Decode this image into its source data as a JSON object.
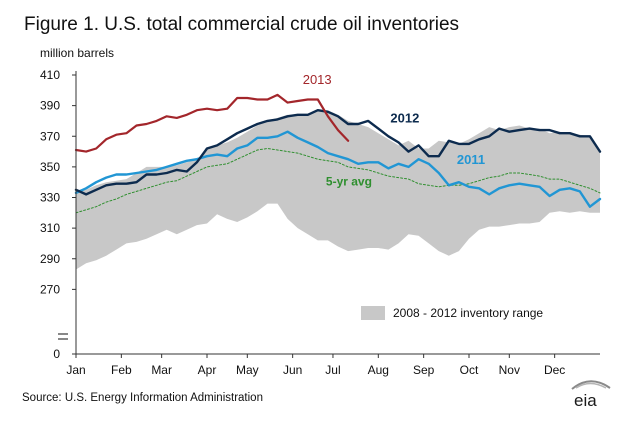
{
  "figure": {
    "title": "Figure 1.  U.S. total commercial crude oil inventories",
    "units": "million barrels",
    "source": "Source:  U.S. Energy Information Administration",
    "logo_text": "eia"
  },
  "chart_data": {
    "type": "line",
    "title": "Figure 1.  U.S. total commercial crude oil inventories",
    "ylabel": "million barrels",
    "xlabel": "",
    "ylim": [
      0,
      410
    ],
    "axis_break": [
      0,
      250
    ],
    "yticks": [
      0,
      270,
      290,
      310,
      330,
      350,
      370,
      390,
      410
    ],
    "ytick_labels": [
      "0",
      "270",
      "290",
      "310",
      "330",
      "350",
      "370",
      "390",
      "410"
    ],
    "xlim": [
      1,
      53
    ],
    "months": [
      {
        "label": "Jan",
        "week": 1
      },
      {
        "label": "Feb",
        "week": 5.5
      },
      {
        "label": "Mar",
        "week": 9.5
      },
      {
        "label": "Apr",
        "week": 14
      },
      {
        "label": "May",
        "week": 18
      },
      {
        "label": "Jun",
        "week": 22.5
      },
      {
        "label": "Jul",
        "week": 26.5
      },
      {
        "label": "Aug",
        "week": 31
      },
      {
        "label": "Sep",
        "week": 35.5
      },
      {
        "label": "Oct",
        "week": 40
      },
      {
        "label": "Nov",
        "week": 44
      },
      {
        "label": "Dec",
        "week": 48.5
      }
    ],
    "grid": false,
    "range_band": {
      "name": "2008 - 2012 inventory range",
      "color": "#c8c8c8",
      "weeks": [
        1,
        2,
        3,
        4,
        5,
        6,
        7,
        8,
        9,
        10,
        11,
        12,
        13,
        14,
        15,
        16,
        17,
        18,
        19,
        20,
        21,
        22,
        23,
        24,
        25,
        26,
        27,
        28,
        29,
        30,
        31,
        32,
        33,
        34,
        35,
        36,
        37,
        38,
        39,
        40,
        41,
        42,
        43,
        44,
        45,
        46,
        47,
        48,
        49,
        50,
        51,
        52,
        53
      ],
      "upper": [
        335,
        335,
        338,
        340,
        341,
        342,
        346,
        350,
        350,
        350,
        351,
        353,
        355,
        361,
        364,
        366,
        369,
        373,
        377,
        380,
        382,
        384,
        384,
        384,
        387,
        387,
        384,
        380,
        378,
        376,
        372,
        368,
        364,
        367,
        362,
        362,
        367,
        366,
        365,
        368,
        372,
        376,
        374,
        376,
        377,
        375,
        375,
        372,
        373,
        372,
        371,
        370,
        361
      ],
      "lower": [
        283,
        287,
        289,
        292,
        296,
        300,
        301,
        303,
        306,
        309,
        306,
        309,
        312,
        313,
        319,
        316,
        314,
        317,
        321,
        326,
        326,
        316,
        310,
        306,
        302,
        302,
        298,
        295,
        296,
        297,
        297,
        296,
        300,
        306,
        305,
        300,
        295,
        292,
        295,
        303,
        309,
        311,
        311,
        312,
        313,
        313,
        314,
        320,
        321,
        320,
        321,
        320,
        320
      ]
    },
    "series": [
      {
        "name": "2013",
        "color": "#a3262b",
        "width": 2.2,
        "x": [
          1,
          2,
          3,
          4,
          5,
          6,
          7,
          8,
          9,
          10,
          11,
          12,
          13,
          14,
          15,
          16,
          17,
          18,
          19,
          20,
          21,
          22,
          23,
          24,
          25,
          26,
          27,
          28
        ],
        "y": [
          361,
          360,
          362,
          368,
          371,
          372,
          377,
          378,
          380,
          383,
          382,
          384,
          387,
          388,
          387,
          388,
          395,
          395,
          394,
          394,
          397,
          392,
          393,
          394,
          394,
          383,
          374,
          367
        ]
      },
      {
        "name": "2012",
        "color": "#0d2b4e",
        "width": 2.4,
        "x": [
          1,
          2,
          3,
          4,
          5,
          6,
          7,
          8,
          9,
          10,
          11,
          12,
          13,
          14,
          15,
          16,
          17,
          18,
          19,
          20,
          21,
          22,
          23,
          24,
          25,
          26,
          27,
          28,
          29,
          30,
          31,
          32,
          33,
          34,
          35,
          36,
          37,
          38,
          39,
          40,
          41,
          42,
          43,
          44,
          45,
          46,
          47,
          48,
          49,
          50,
          51,
          52,
          53
        ],
        "y": [
          335,
          332,
          335,
          338,
          339,
          339,
          340,
          345,
          345,
          346,
          348,
          347,
          353,
          362,
          364,
          368,
          372,
          375,
          378,
          380,
          381,
          383,
          384,
          384,
          387,
          386,
          383,
          378,
          378,
          380,
          375,
          370,
          366,
          360,
          364,
          357,
          357,
          367,
          365,
          365,
          368,
          370,
          375,
          373,
          374,
          375,
          374,
          374,
          372,
          372,
          370,
          370,
          360
        ]
      },
      {
        "name": "2011",
        "color": "#2196d4",
        "width": 2.4,
        "x": [
          1,
          2,
          3,
          4,
          5,
          6,
          7,
          8,
          9,
          10,
          11,
          12,
          13,
          14,
          15,
          16,
          17,
          18,
          19,
          20,
          21,
          22,
          23,
          24,
          25,
          26,
          27,
          28,
          29,
          30,
          31,
          32,
          33,
          34,
          35,
          36,
          37,
          38,
          39,
          40,
          41,
          42,
          43,
          44,
          45,
          46,
          47,
          48,
          49,
          50,
          51,
          52,
          53
        ],
        "y": [
          333,
          336,
          340,
          343,
          345,
          345,
          346,
          347,
          348,
          350,
          352,
          354,
          355,
          357,
          358,
          357,
          362,
          364,
          369,
          369,
          370,
          373,
          369,
          366,
          363,
          359,
          357,
          355,
          352,
          353,
          353,
          349,
          352,
          350,
          355,
          352,
          346,
          338,
          340,
          337,
          336,
          332,
          336,
          338,
          339,
          338,
          337,
          331,
          335,
          336,
          334,
          324,
          329
        ]
      },
      {
        "name": "5-yr avg",
        "color": "#2f8f2f",
        "width": 1,
        "dashed": true,
        "x": [
          1,
          2,
          3,
          4,
          5,
          6,
          7,
          8,
          9,
          10,
          11,
          12,
          13,
          14,
          15,
          16,
          17,
          18,
          19,
          20,
          21,
          22,
          23,
          24,
          25,
          26,
          27,
          28,
          29,
          30,
          31,
          32,
          33,
          34,
          35,
          36,
          37,
          38,
          39,
          40,
          41,
          42,
          43,
          44,
          45,
          46,
          47,
          48,
          49,
          50,
          51,
          52,
          53
        ],
        "y": [
          320,
          322,
          324,
          327,
          329,
          332,
          334,
          336,
          338,
          340,
          341,
          344,
          347,
          350,
          351,
          352,
          355,
          358,
          361,
          362,
          361,
          360,
          359,
          357,
          355,
          354,
          353,
          350,
          349,
          348,
          346,
          344,
          343,
          342,
          339,
          338,
          337,
          338,
          338,
          339,
          341,
          343,
          344,
          346,
          346,
          345,
          344,
          342,
          342,
          340,
          338,
          336,
          333
        ]
      }
    ],
    "annotations": [
      {
        "text": "2013",
        "series": "2013"
      },
      {
        "text": "2012",
        "series": "2012"
      },
      {
        "text": "2011",
        "series": "2011"
      },
      {
        "text": "5-yr avg",
        "series": "5-yr avg"
      }
    ],
    "legend": {
      "placement": "bottom-center",
      "entries": [
        "2008 - 2012 inventory range"
      ]
    }
  }
}
